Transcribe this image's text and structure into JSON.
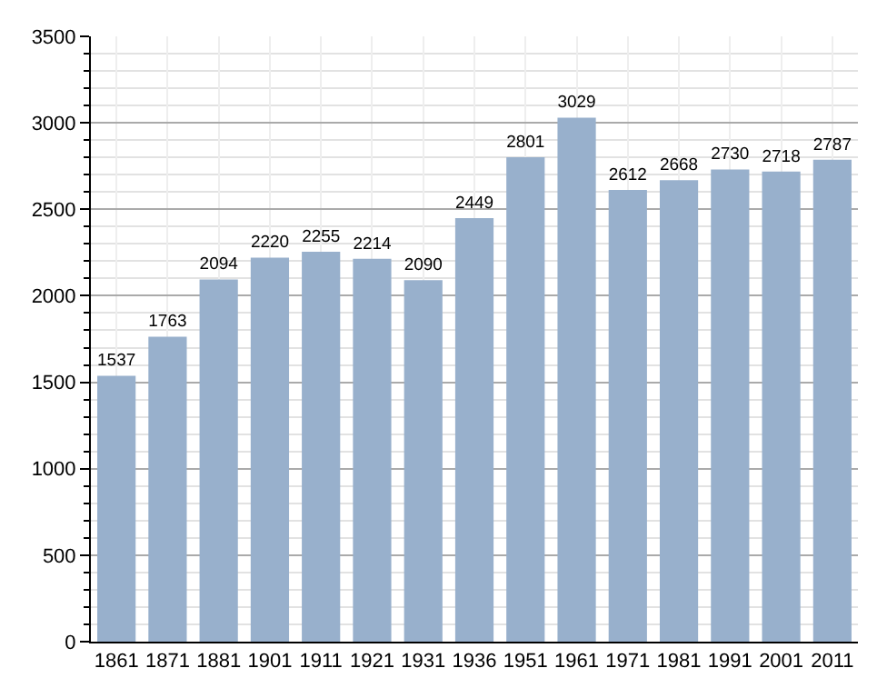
{
  "chart_data": {
    "type": "bar",
    "categories": [
      "1861",
      "1871",
      "1881",
      "1901",
      "1911",
      "1921",
      "1931",
      "1936",
      "1951",
      "1961",
      "1971",
      "1981",
      "1991",
      "2001",
      "2011"
    ],
    "values": [
      1537,
      1763,
      2094,
      2220,
      2255,
      2214,
      2090,
      2449,
      2801,
      3029,
      2612,
      2668,
      2730,
      2718,
      2787
    ],
    "color": "#98b0cc",
    "data_labels": true,
    "grid": true,
    "ylim": [
      0,
      3500
    ],
    "yticks": [
      0,
      500,
      1000,
      1500,
      2000,
      2500,
      3000,
      3500
    ]
  }
}
